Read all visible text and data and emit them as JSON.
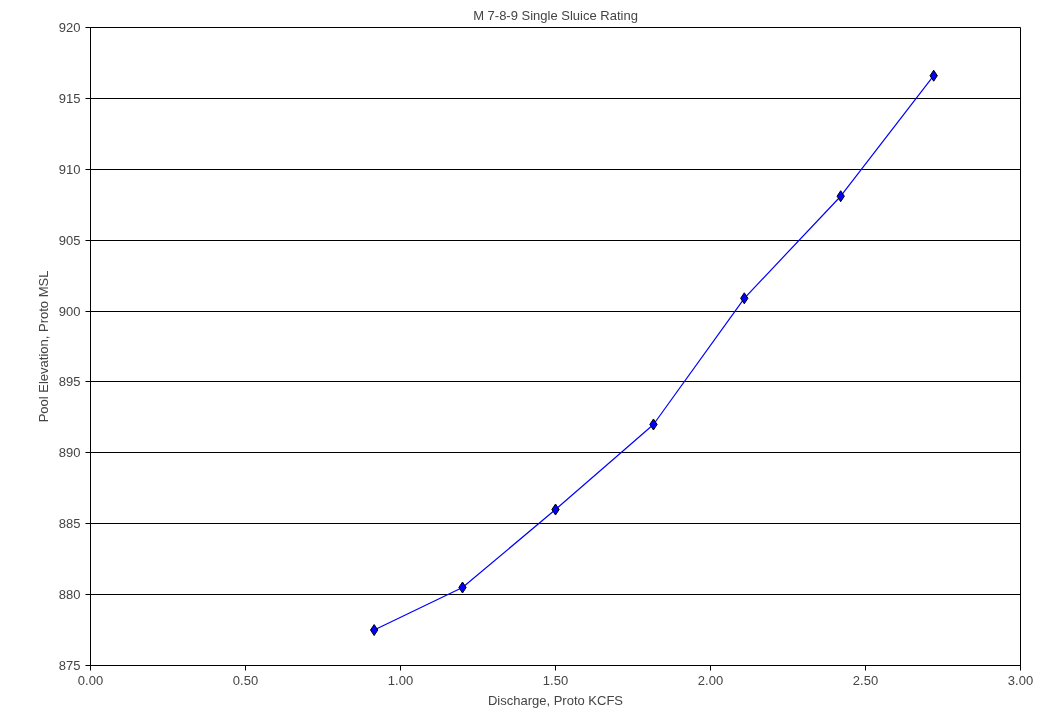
{
  "chart_data": {
    "type": "line",
    "title": "M 7-8-9 Single Sluice Rating",
    "xlabel": "Discharge, Proto KCFS",
    "ylabel": "Pool Elevation, Proto MSL",
    "x": [
      0.915,
      1.2,
      1.5,
      1.816,
      2.109,
      2.42,
      2.72
    ],
    "series": [
      {
        "color": "#0000ff",
        "values": [
          877.5,
          880.5,
          886.0,
          892.0,
          900.9,
          908.1,
          916.6
        ]
      }
    ],
    "xlim": [
      0,
      3
    ],
    "xticks": [
      {
        "value": 0,
        "label": "0.00"
      },
      {
        "value": 0.5,
        "label": "0.50"
      },
      {
        "value": 1,
        "label": "1.00"
      },
      {
        "value": 1.5,
        "label": "1.50"
      },
      {
        "value": 2,
        "label": "2.00"
      },
      {
        "value": 2.5,
        "label": "2.50"
      },
      {
        "value": 3,
        "label": "3.00"
      }
    ],
    "ylim": [
      875,
      920
    ],
    "yticks": [
      875,
      880,
      885,
      890,
      895,
      900,
      905,
      910,
      915,
      920
    ],
    "grid": "y",
    "marker": "diamond",
    "line_style": "solid"
  }
}
